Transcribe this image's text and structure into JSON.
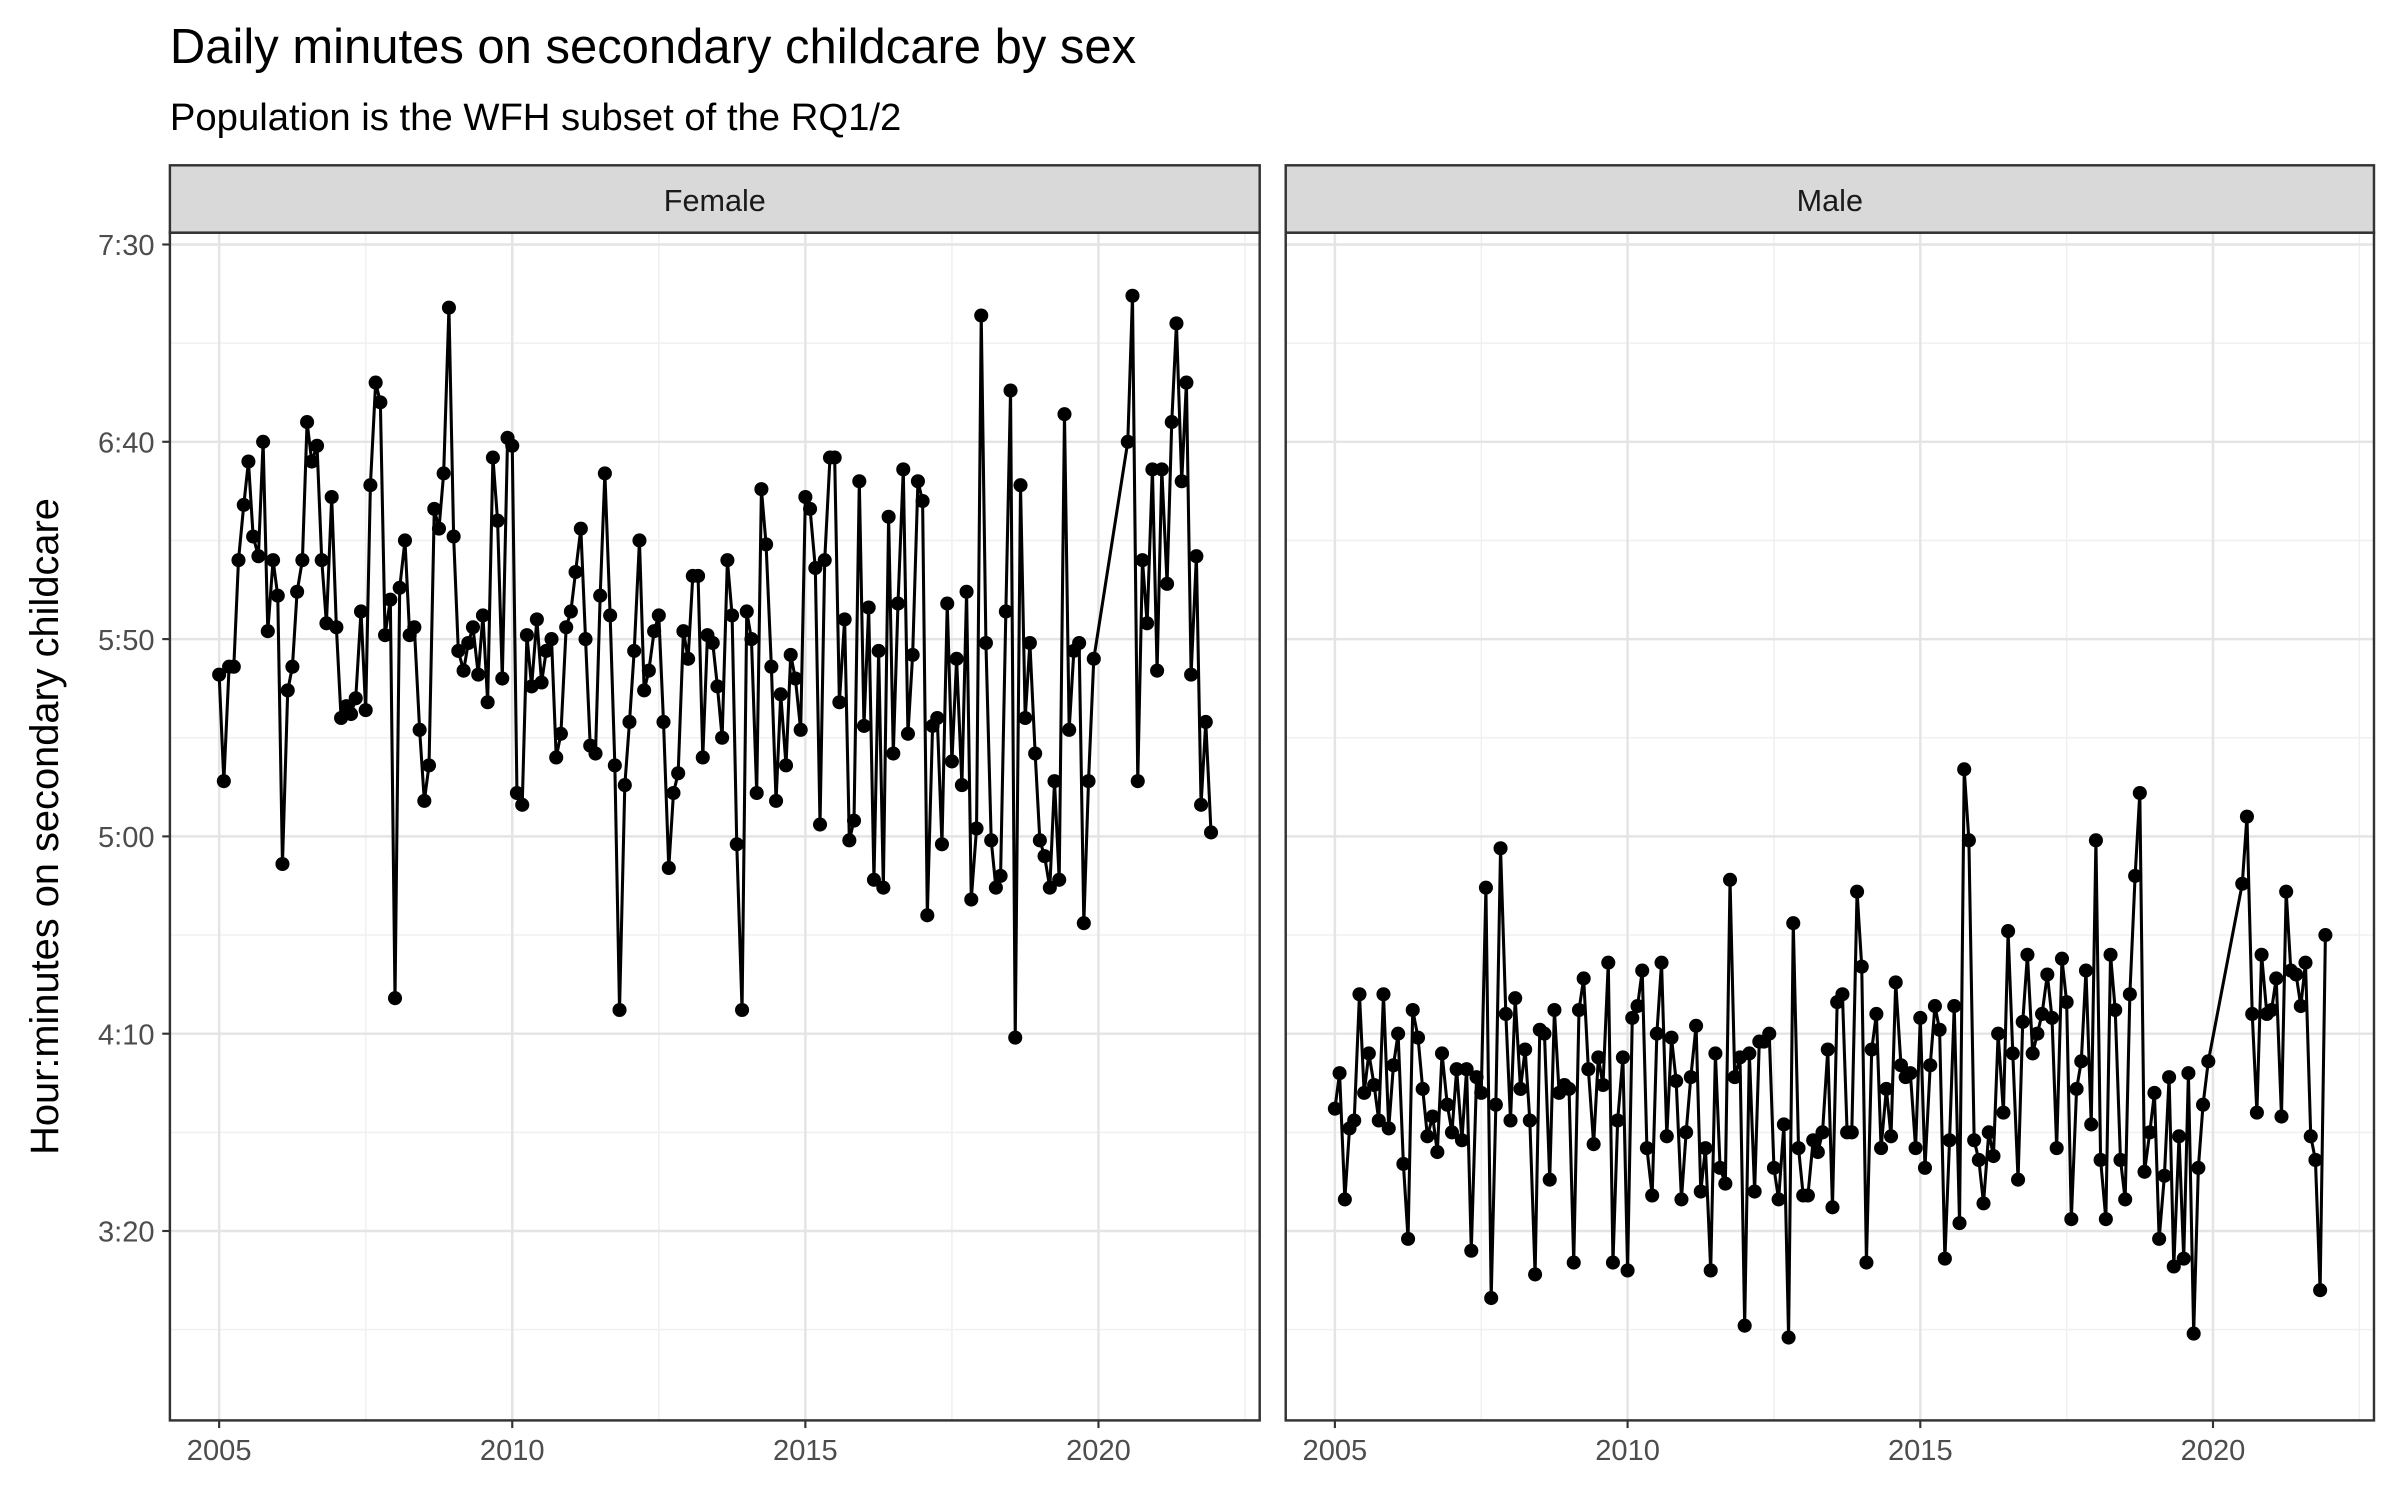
{
  "chart_data": {
    "type": "line",
    "title": "Daily minutes on secondary childcare by sex",
    "subtitle": "Population is the WFH subset of the RQ1/2",
    "y_label": "Hour:minutes on secondary childcare",
    "facet": true,
    "grid": true,
    "xlim": [
      2004.16,
      2022.75
    ],
    "xticks": [
      2005,
      2010,
      2015,
      2020
    ],
    "ylim": [
      152,
      453
    ],
    "yticks": [
      {
        "value": 200,
        "label": "3:20"
      },
      {
        "value": 250,
        "label": "4:10"
      },
      {
        "value": 300,
        "label": "5:00"
      },
      {
        "value": 350,
        "label": "5:50"
      },
      {
        "value": 400,
        "label": "6:40"
      },
      {
        "value": 450,
        "label": "7:30"
      }
    ],
    "x": [
      2005,
      2005.08,
      2005.17,
      2005.25,
      2005.33,
      2005.42,
      2005.5,
      2005.58,
      2005.67,
      2005.75,
      2005.83,
      2005.92,
      2006,
      2006.08,
      2006.17,
      2006.25,
      2006.33,
      2006.42,
      2006.5,
      2006.58,
      2006.67,
      2006.75,
      2006.83,
      2006.92,
      2007,
      2007.08,
      2007.17,
      2007.25,
      2007.33,
      2007.42,
      2007.5,
      2007.58,
      2007.67,
      2007.75,
      2007.83,
      2007.92,
      2008,
      2008.08,
      2008.17,
      2008.25,
      2008.33,
      2008.42,
      2008.5,
      2008.58,
      2008.67,
      2008.75,
      2008.83,
      2008.92,
      2009,
      2009.08,
      2009.17,
      2009.25,
      2009.33,
      2009.42,
      2009.5,
      2009.58,
      2009.67,
      2009.75,
      2009.83,
      2009.92,
      2010,
      2010.08,
      2010.17,
      2010.25,
      2010.33,
      2010.42,
      2010.5,
      2010.58,
      2010.67,
      2010.75,
      2010.83,
      2010.92,
      2011,
      2011.08,
      2011.17,
      2011.25,
      2011.33,
      2011.42,
      2011.5,
      2011.58,
      2011.67,
      2011.75,
      2011.83,
      2011.92,
      2012,
      2012.08,
      2012.17,
      2012.25,
      2012.33,
      2012.42,
      2012.5,
      2012.58,
      2012.67,
      2012.75,
      2012.83,
      2012.92,
      2013,
      2013.08,
      2013.17,
      2013.25,
      2013.33,
      2013.42,
      2013.5,
      2013.58,
      2013.67,
      2013.75,
      2013.83,
      2013.92,
      2014,
      2014.08,
      2014.17,
      2014.25,
      2014.33,
      2014.42,
      2014.5,
      2014.58,
      2014.67,
      2014.75,
      2014.83,
      2014.92,
      2015,
      2015.08,
      2015.17,
      2015.25,
      2015.33,
      2015.42,
      2015.5,
      2015.58,
      2015.67,
      2015.75,
      2015.83,
      2015.92,
      2016,
      2016.08,
      2016.17,
      2016.25,
      2016.33,
      2016.42,
      2016.5,
      2016.58,
      2016.67,
      2016.75,
      2016.83,
      2016.92,
      2017,
      2017.08,
      2017.17,
      2017.25,
      2017.33,
      2017.42,
      2017.5,
      2017.58,
      2017.67,
      2017.75,
      2017.83,
      2017.92,
      2018,
      2018.08,
      2018.17,
      2018.25,
      2018.33,
      2018.42,
      2018.5,
      2018.58,
      2018.67,
      2018.75,
      2018.83,
      2018.92,
      2019,
      2019.08,
      2019.17,
      2019.25,
      2019.33,
      2019.42,
      2019.5,
      2019.58,
      2019.67,
      2019.75,
      2019.83,
      2019.92,
      2020.5,
      2020.58,
      2020.67,
      2020.75,
      2020.83,
      2020.92,
      2021,
      2021.08,
      2021.17,
      2021.25,
      2021.33,
      2021.42,
      2021.5,
      2021.58,
      2021.67,
      2021.75,
      2021.83,
      2021.92
    ],
    "series": [
      {
        "name": "Female",
        "color": "#000000",
        "values": [
          341,
          314,
          343,
          343,
          370,
          384,
          395,
          376,
          371,
          400,
          352,
          370,
          361,
          293,
          337,
          343,
          362,
          370,
          405,
          395,
          399,
          370,
          354,
          386,
          353,
          330,
          333,
          331,
          335,
          357,
          332,
          389,
          415,
          410,
          351,
          360,
          259,
          363,
          375,
          351,
          353,
          327,
          309,
          318,
          383,
          378,
          392,
          434,
          376,
          347,
          342,
          349,
          353,
          341,
          356,
          334,
          396,
          380,
          340,
          401,
          399,
          311,
          308,
          351,
          338,
          355,
          339,
          347,
          350,
          320,
          326,
          353,
          357,
          367,
          378,
          350,
          323,
          321,
          361,
          392,
          356,
          318,
          256,
          313,
          329,
          347,
          375,
          337,
          342,
          352,
          356,
          329,
          292,
          311,
          316,
          352,
          345,
          366,
          366,
          320,
          351,
          349,
          338,
          325,
          370,
          356,
          298,
          256,
          357,
          350,
          311,
          388,
          374,
          343,
          309,
          336,
          318,
          346,
          340,
          327,
          386,
          383,
          368,
          303,
          370,
          396,
          396,
          334,
          355,
          299,
          304,
          390,
          328,
          358,
          289,
          347,
          287,
          381,
          321,
          359,
          393,
          326,
          346,
          390,
          385,
          280,
          328,
          330,
          298,
          359,
          319,
          345,
          313,
          362,
          284,
          302,
          432,
          349,
          299,
          287,
          290,
          357,
          413,
          249,
          389,
          330,
          349,
          321,
          299,
          295,
          287,
          314,
          289,
          407,
          327,
          347,
          349,
          278,
          314,
          345,
          400,
          437,
          314,
          370,
          354,
          393,
          342,
          393,
          364,
          405,
          430,
          390,
          415,
          341,
          371,
          308,
          329,
          301
        ]
      },
      {
        "name": "Male",
        "color": "#000000",
        "values": [
          231,
          240,
          208,
          226,
          228,
          260,
          235,
          245,
          237,
          228,
          260,
          226,
          242,
          250,
          217,
          198,
          256,
          249,
          236,
          224,
          229,
          220,
          245,
          232,
          225,
          241,
          223,
          241,
          195,
          239,
          235,
          287,
          183,
          232,
          297,
          255,
          228,
          259,
          236,
          246,
          228,
          189,
          251,
          250,
          213,
          256,
          235,
          237,
          236,
          192,
          256,
          264,
          241,
          222,
          244,
          237,
          268,
          192,
          228,
          244,
          190,
          254,
          257,
          266,
          221,
          209,
          250,
          268,
          224,
          249,
          238,
          208,
          225,
          239,
          252,
          210,
          221,
          190,
          245,
          216,
          212,
          289,
          239,
          244,
          176,
          245,
          210,
          248,
          248,
          250,
          216,
          208,
          227,
          173,
          278,
          221,
          209,
          209,
          223,
          220,
          225,
          246,
          206,
          258,
          260,
          225,
          225,
          286,
          267,
          192,
          246,
          255,
          221,
          236,
          224,
          263,
          242,
          239,
          240,
          221,
          254,
          216,
          242,
          257,
          251,
          193,
          223,
          257,
          202,
          317,
          299,
          223,
          218,
          207,
          225,
          219,
          250,
          230,
          276,
          245,
          213,
          253,
          270,
          245,
          250,
          255,
          265,
          254,
          221,
          269,
          258,
          203,
          236,
          243,
          266,
          227,
          299,
          218,
          203,
          270,
          256,
          218,
          208,
          260,
          290,
          311,
          215,
          225,
          235,
          198,
          214,
          239,
          191,
          224,
          193,
          240,
          174,
          216,
          232,
          243,
          288,
          305,
          255,
          230,
          270,
          255,
          256,
          264,
          229,
          286,
          266,
          265,
          257,
          268,
          224,
          218,
          185,
          275
        ]
      }
    ]
  }
}
